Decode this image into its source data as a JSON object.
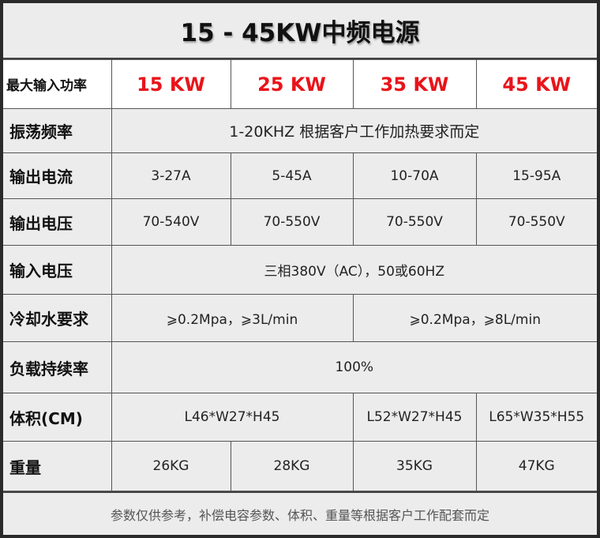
{
  "title": "15 - 45KW中频电源",
  "rows": {
    "power": {
      "label": "最大输入功率",
      "values": [
        "15 KW",
        "25 KW",
        "35 KW",
        "45 KW"
      ]
    },
    "frequency": {
      "label": "振荡频率",
      "value": "1-20KHZ 根据客户工作加热要求而定"
    },
    "current": {
      "label": "输出电流",
      "values": [
        "3-27A",
        "5-45A",
        "10-70A",
        "15-95A"
      ]
    },
    "voltage_out": {
      "label": "输出电压",
      "values": [
        "70-540V",
        "70-550V",
        "70-550V",
        "70-550V"
      ]
    },
    "voltage_in": {
      "label": "输入电压",
      "value": "三相380V（AC），50或60HZ"
    },
    "cooling": {
      "label": "冷却水要求",
      "values": [
        "⩾0.2Mpa，⩾3L/min",
        "⩾0.2Mpa，⩾8L/min"
      ]
    },
    "duty": {
      "label": "负载持续率",
      "value": "100%"
    },
    "volume": {
      "label": "体积(CM)",
      "values": [
        "L46*W27*H45",
        "L52*W27*H45",
        "L65*W35*H55"
      ]
    },
    "weight": {
      "label": "重量",
      "values": [
        "26KG",
        "28KG",
        "35KG",
        "47KG"
      ]
    }
  },
  "footer": "参数仅供参考，补偿电容参数、体积、重量等根据客户工作配套而定",
  "colors": {
    "accent": "#e8141a",
    "cell_bg": "#ececec",
    "frame": "#2a2a2a"
  }
}
